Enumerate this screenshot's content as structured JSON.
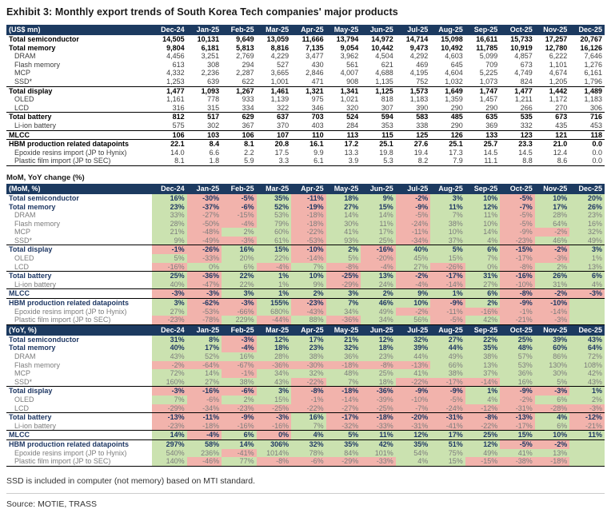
{
  "title": "Exhibit 3: Monthly export trends of South Korea Tech companies' major products",
  "section_label": "MoM, YoY change (%)",
  "footnote": "SSD is included in computer (not memory) based on MTI standard.",
  "source": "Source: MOTIE, TRASS",
  "colors": {
    "header_bg": "#1c3a60",
    "positive_bg": "#cbe2b0",
    "negative_bg": "#f2b3ac",
    "total_text_colored": "#1f3864",
    "sub_text_colored": "#7c7c7c"
  },
  "months": [
    "Dec-24",
    "Jan-25",
    "Feb-25",
    "Mar-25",
    "Apr-25",
    "May-25",
    "Jun-25",
    "Jul-25",
    "Aug-25",
    "Sep-25",
    "Oct-25",
    "Nov-25",
    "Dec-25"
  ],
  "sections": [
    {
      "id": "usd",
      "header_label": "(US$ mn)",
      "colored": false,
      "rows": [
        {
          "label": "Total semiconductor",
          "style": "total",
          "values": [
            "14,505",
            "10,131",
            "9,649",
            "13,059",
            "11,666",
            "13,794",
            "14,972",
            "14,714",
            "15,098",
            "16,611",
            "15,733",
            "17,257",
            "20,767"
          ]
        },
        {
          "label": "Total memory",
          "style": "total",
          "values": [
            "9,804",
            "6,181",
            "5,813",
            "8,816",
            "7,135",
            "9,054",
            "10,442",
            "9,473",
            "10,492",
            "11,785",
            "10,919",
            "12,780",
            "16,126"
          ]
        },
        {
          "label": "DRAM",
          "style": "sub",
          "values": [
            "4,456",
            "3,251",
            "2,769",
            "4,229",
            "3,477",
            "3,962",
            "4,504",
            "4,292",
            "4,603",
            "5,099",
            "4,857",
            "6,222",
            "7,646"
          ]
        },
        {
          "label": "Flash memory",
          "style": "sub",
          "values": [
            "613",
            "308",
            "294",
            "527",
            "430",
            "561",
            "621",
            "469",
            "645",
            "709",
            "673",
            "1,101",
            "1,276"
          ]
        },
        {
          "label": "MCP",
          "style": "sub",
          "values": [
            "4,332",
            "2,236",
            "2,287",
            "3,665",
            "2,846",
            "4,007",
            "4,688",
            "4,195",
            "4,604",
            "5,225",
            "4,749",
            "4,674",
            "6,161"
          ]
        },
        {
          "label": "SSD*",
          "style": "sub",
          "values": [
            "1,253",
            "639",
            "622",
            "1,001",
            "471",
            "908",
            "1,135",
            "752",
            "1,032",
            "1,073",
            "824",
            "1,205",
            "1,796"
          ]
        },
        {
          "label": "Total display",
          "style": "total",
          "border_top": true,
          "values": [
            "1,477",
            "1,093",
            "1,267",
            "1,461",
            "1,321",
            "1,341",
            "1,125",
            "1,573",
            "1,649",
            "1,747",
            "1,477",
            "1,442",
            "1,489"
          ]
        },
        {
          "label": "OLED",
          "style": "sub",
          "values": [
            "1,161",
            "778",
            "933",
            "1,139",
            "975",
            "1,021",
            "818",
            "1,183",
            "1,359",
            "1,457",
            "1,211",
            "1,172",
            "1,183"
          ]
        },
        {
          "label": "LCD",
          "style": "sub",
          "values": [
            "316",
            "315",
            "334",
            "322",
            "346",
            "320",
            "307",
            "390",
            "290",
            "290",
            "266",
            "270",
            "306"
          ]
        },
        {
          "label": "Total battery",
          "style": "total",
          "border_top": true,
          "values": [
            "812",
            "517",
            "629",
            "637",
            "703",
            "524",
            "594",
            "583",
            "485",
            "635",
            "535",
            "673",
            "716"
          ]
        },
        {
          "label": "Li-ion battery",
          "style": "sub",
          "values": [
            "575",
            "302",
            "367",
            "370",
            "403",
            "284",
            "353",
            "338",
            "290",
            "369",
            "332",
            "435",
            "453"
          ]
        },
        {
          "label": "MLCC",
          "style": "total",
          "border_top": true,
          "values": [
            "106",
            "103",
            "106",
            "107",
            "110",
            "113",
            "115",
            "125",
            "126",
            "133",
            "123",
            "121",
            "118"
          ]
        },
        {
          "label": "HBM production related datapoints",
          "style": "total",
          "border_top": true,
          "values": [
            "22.1",
            "8.4",
            "8.1",
            "20.8",
            "16.1",
            "17.2",
            "25.1",
            "27.6",
            "25.1",
            "25.7",
            "23.3",
            "21.0",
            "0.0"
          ]
        },
        {
          "label": "Epoxide resins import (JP to Hynix)",
          "style": "sub",
          "values": [
            "14.0",
            "6.6",
            "2.2",
            "17.5",
            "9.9",
            "13.3",
            "19.8",
            "19.4",
            "17.3",
            "14.5",
            "14.5",
            "12.4",
            "0.0"
          ]
        },
        {
          "label": "Plastic film import (JP to SEC)",
          "style": "sub",
          "values": [
            "8.1",
            "1.8",
            "5.9",
            "3.3",
            "6.1",
            "3.9",
            "5.3",
            "8.2",
            "7.9",
            "11.1",
            "8.8",
            "8.6",
            "0.0"
          ]
        }
      ]
    },
    {
      "id": "mom",
      "header_label": "(MoM, %)",
      "colored": true,
      "rows": [
        {
          "label": "Total semiconductor",
          "style": "total",
          "values": [
            "16%",
            "-30%",
            "-5%",
            "35%",
            "-11%",
            "18%",
            "9%",
            "-2%",
            "3%",
            "10%",
            "-5%",
            "10%",
            "20%"
          ]
        },
        {
          "label": "Total memory",
          "style": "total",
          "values": [
            "23%",
            "-37%",
            "-6%",
            "52%",
            "-19%",
            "27%",
            "15%",
            "-9%",
            "11%",
            "12%",
            "-7%",
            "17%",
            "26%"
          ]
        },
        {
          "label": "DRAM",
          "style": "sub",
          "values": [
            "33%",
            "-27%",
            "-15%",
            "53%",
            "-18%",
            "14%",
            "14%",
            "-5%",
            "7%",
            "11%",
            "-5%",
            "28%",
            "23%"
          ]
        },
        {
          "label": "Flash memory",
          "style": "sub",
          "values": [
            "28%",
            "-50%",
            "-4%",
            "79%",
            "-18%",
            "30%",
            "11%",
            "-24%",
            "38%",
            "10%",
            "-5%",
            "64%",
            "16%"
          ]
        },
        {
          "label": "MCP",
          "style": "sub",
          "values": [
            "21%",
            "-48%",
            "2%",
            "60%",
            "-22%",
            "41%",
            "17%",
            "-11%",
            "10%",
            "14%",
            "-9%",
            "-2%",
            "32%"
          ]
        },
        {
          "label": "SSD*",
          "style": "sub",
          "values": [
            "9%",
            "-49%",
            "-3%",
            "61%",
            "-53%",
            "93%",
            "25%",
            "-34%",
            "37%",
            "4%",
            "-23%",
            "46%",
            "49%"
          ]
        },
        {
          "label": "Total display",
          "style": "total",
          "border_top": true,
          "values": [
            "-1%",
            "-26%",
            "16%",
            "15%",
            "-10%",
            "2%",
            "-16%",
            "40%",
            "5%",
            "6%",
            "-15%",
            "-2%",
            "3%"
          ]
        },
        {
          "label": "OLED",
          "style": "sub",
          "values": [
            "5%",
            "-33%",
            "20%",
            "22%",
            "-14%",
            "5%",
            "-20%",
            "45%",
            "15%",
            "7%",
            "-17%",
            "-3%",
            "1%"
          ]
        },
        {
          "label": "LCD",
          "style": "sub",
          "values": [
            "-16%",
            "0%",
            "6%",
            "-4%",
            "7%",
            "-8%",
            "-4%",
            "27%",
            "-26%",
            "0%",
            "-8%",
            "2%",
            "13%"
          ]
        },
        {
          "label": "Total battery",
          "style": "total",
          "border_top": true,
          "values": [
            "25%",
            "-36%",
            "22%",
            "1%",
            "10%",
            "-25%",
            "13%",
            "-2%",
            "-17%",
            "31%",
            "-16%",
            "26%",
            "6%"
          ]
        },
        {
          "label": "Li-ion battery",
          "style": "sub",
          "values": [
            "40%",
            "-47%",
            "22%",
            "1%",
            "9%",
            "-29%",
            "24%",
            "-4%",
            "-14%",
            "27%",
            "-10%",
            "31%",
            "4%"
          ]
        },
        {
          "label": "MLCC",
          "style": "total",
          "border_top": true,
          "values": [
            "-3%",
            "-3%",
            "3%",
            "1%",
            "2%",
            "3%",
            "2%",
            "9%",
            "1%",
            "6%",
            "-8%",
            "-2%",
            "-3%"
          ]
        },
        {
          "label": "HBM production related datapoints",
          "style": "total",
          "border_top": true,
          "values": [
            "3%",
            "-62%",
            "-3%",
            "155%",
            "-23%",
            "7%",
            "46%",
            "10%",
            "-9%",
            "2%",
            "-9%",
            "-10%",
            ""
          ]
        },
        {
          "label": "Epoxide resins import (JP to Hynix)",
          "style": "sub",
          "values": [
            "27%",
            "-53%",
            "-66%",
            "680%",
            "-43%",
            "34%",
            "49%",
            "-2%",
            "-11%",
            "-16%",
            "-1%",
            "-14%",
            ""
          ]
        },
        {
          "label": "Plastic film import (JP to SEC)",
          "style": "sub",
          "values": [
            "-23%",
            "-78%",
            "229%",
            "-44%",
            "88%",
            "-36%",
            "34%",
            "56%",
            "-5%",
            "42%",
            "-21%",
            "-3%",
            ""
          ]
        }
      ]
    },
    {
      "id": "yoy",
      "header_label": "(YoY, %)",
      "colored": true,
      "rows": [
        {
          "label": "Total semiconductor",
          "style": "total",
          "values": [
            "31%",
            "8%",
            "-3%",
            "12%",
            "17%",
            "21%",
            "12%",
            "32%",
            "27%",
            "22%",
            "25%",
            "39%",
            "43%"
          ]
        },
        {
          "label": "Total memory",
          "style": "total",
          "values": [
            "40%",
            "17%",
            "-4%",
            "18%",
            "23%",
            "32%",
            "18%",
            "39%",
            "44%",
            "35%",
            "48%",
            "60%",
            "64%"
          ]
        },
        {
          "label": "DRAM",
          "style": "sub",
          "values": [
            "43%",
            "52%",
            "16%",
            "28%",
            "38%",
            "36%",
            "23%",
            "44%",
            "49%",
            "38%",
            "57%",
            "86%",
            "72%"
          ]
        },
        {
          "label": "Flash memory",
          "style": "sub",
          "values": [
            "-2%",
            "-64%",
            "-67%",
            "-36%",
            "-30%",
            "-18%",
            "-8%",
            "-13%",
            "66%",
            "13%",
            "53%",
            "130%",
            "108%"
          ]
        },
        {
          "label": "MCP",
          "style": "sub",
          "values": [
            "72%",
            "14%",
            "-1%",
            "34%",
            "32%",
            "48%",
            "25%",
            "41%",
            "38%",
            "37%",
            "36%",
            "30%",
            "42%"
          ]
        },
        {
          "label": "SSD*",
          "style": "sub",
          "values": [
            "160%",
            "27%",
            "38%",
            "43%",
            "-22%",
            "7%",
            "18%",
            "-22%",
            "-17%",
            "-14%",
            "16%",
            "5%",
            "43%"
          ]
        },
        {
          "label": "Total display",
          "style": "total",
          "border_top": true,
          "values": [
            "-3%",
            "-16%",
            "-6%",
            "3%",
            "-8%",
            "-18%",
            "-36%",
            "-9%",
            "-9%",
            "1%",
            "-9%",
            "-3%",
            "1%"
          ]
        },
        {
          "label": "OLED",
          "style": "sub",
          "values": [
            "7%",
            "-6%",
            "2%",
            "15%",
            "-1%",
            "-14%",
            "-39%",
            "-10%",
            "-5%",
            "4%",
            "-2%",
            "6%",
            "2%"
          ]
        },
        {
          "label": "LCD",
          "style": "sub",
          "values": [
            "-29%",
            "-34%",
            "-23%",
            "-25%",
            "-22%",
            "-27%",
            "-25%",
            "-7%",
            "-24%",
            "-12%",
            "-31%",
            "-28%",
            "-3%"
          ]
        },
        {
          "label": "Total battery",
          "style": "total",
          "border_top": true,
          "values": [
            "-13%",
            "-11%",
            "-9%",
            "-3%",
            "16%",
            "-17%",
            "-18%",
            "-20%",
            "-31%",
            "-8%",
            "-13%",
            "4%",
            "-12%"
          ]
        },
        {
          "label": "Li-ion battery",
          "style": "sub",
          "values": [
            "-23%",
            "-18%",
            "-16%",
            "-16%",
            "7%",
            "-32%",
            "-33%",
            "-31%",
            "-41%",
            "-22%",
            "-17%",
            "6%",
            "-21%"
          ]
        },
        {
          "label": "MLCC",
          "style": "total",
          "border_top": true,
          "overrides": {
            "3": "neg"
          },
          "values": [
            "14%",
            "-4%",
            "6%",
            "0%",
            "4%",
            "5%",
            "11%",
            "12%",
            "17%",
            "25%",
            "15%",
            "10%",
            "11%"
          ]
        },
        {
          "label": "HBM production related datapoints",
          "style": "total",
          "border_top": true,
          "values": [
            "297%",
            "58%",
            "14%",
            "306%",
            "32%",
            "35%",
            "42%",
            "35%",
            "51%",
            "12%",
            "-5%",
            "-2%",
            ""
          ]
        },
        {
          "label": "Epoxide resins import (JP to Hynix)",
          "style": "sub",
          "values": [
            "540%",
            "236%",
            "-41%",
            "1014%",
            "78%",
            "84%",
            "101%",
            "54%",
            "75%",
            "49%",
            "41%",
            "13%",
            ""
          ]
        },
        {
          "label": "Plastic film import (JP to SEC)",
          "style": "sub",
          "values": [
            "140%",
            "-46%",
            "77%",
            "-8%",
            "-6%",
            "-29%",
            "-33%",
            "4%",
            "15%",
            "-15%",
            "-38%",
            "-18%",
            ""
          ]
        }
      ]
    }
  ]
}
